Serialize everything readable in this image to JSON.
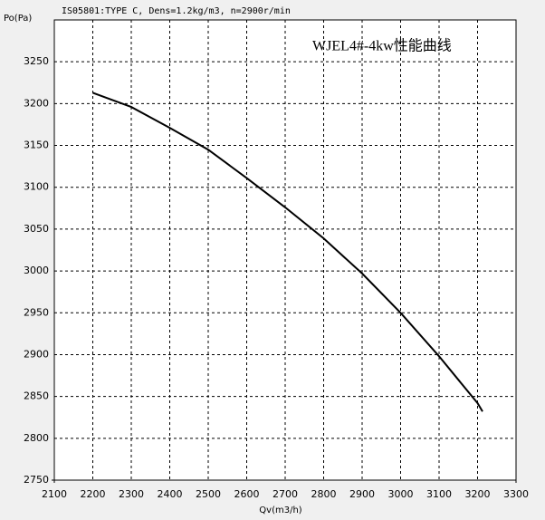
{
  "chart_data": {
    "type": "line",
    "title": "IS05801:TYPE C, Dens=1.2kg/m3, n=2900r/min",
    "annotation": "WJEL4#-4kw性能曲线",
    "x_label": "Qv(m3/h)",
    "y_label": "Po(Pa)",
    "x": [
      2200,
      2300,
      2400,
      2500,
      2600,
      2700,
      2800,
      2900,
      3000,
      3100,
      3200,
      3213
    ],
    "values": [
      3213,
      3196,
      3171,
      3145,
      3111,
      3076,
      3039,
      2997,
      2950,
      2898,
      2842,
      2832
    ],
    "color": "#000000",
    "annotation_color": "#e02020",
    "xlim": [
      2100,
      3300
    ],
    "ylim": [
      2750,
      3300
    ],
    "xticks": [
      2100,
      2200,
      2300,
      2400,
      2500,
      2600,
      2700,
      2800,
      2900,
      3000,
      3100,
      3200,
      3300
    ],
    "yticks": [
      2750,
      2800,
      2850,
      2900,
      2950,
      3000,
      3050,
      3100,
      3150,
      3200,
      3250
    ],
    "grid": true
  }
}
